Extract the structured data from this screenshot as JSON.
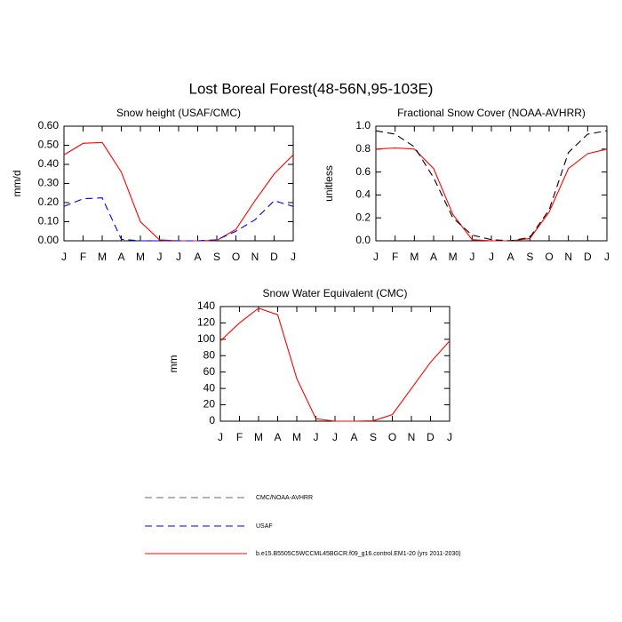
{
  "title": "Lost Boreal Forest(48-56N,95-103E)",
  "legend": {
    "entries": [
      {
        "label": "CMC/NOAA-AVHRR",
        "color": "#000000",
        "dash": "dashed"
      },
      {
        "label": "USAF",
        "color": "#0000ff",
        "dash": "dashed"
      },
      {
        "label": "b.e15.B5505C5WCCML45BGCR.f09_g16.control.EM1-20 (yrs 2011-2030)",
        "color": "#ff0000",
        "dash": "solid"
      }
    ]
  },
  "chart_data": [
    {
      "type": "line",
      "title": "Snow height (USAF/CMC)",
      "y_label": "mm/d",
      "categories": [
        "J",
        "F",
        "M",
        "A",
        "M",
        "J",
        "J",
        "A",
        "S",
        "O",
        "N",
        "D",
        "J"
      ],
      "ylim": [
        0,
        0.6
      ],
      "yticks": [
        {
          "value": 0,
          "label": "0.00"
        },
        {
          "value": 0.1,
          "label": "0.10"
        },
        {
          "value": 0.2,
          "label": "0.20"
        },
        {
          "value": 0.3,
          "label": "0.30"
        },
        {
          "value": 0.4,
          "label": "0.40"
        },
        {
          "value": 0.5,
          "label": "0.50"
        },
        {
          "value": 0.6,
          "label": "0.60"
        }
      ],
      "series": [
        {
          "name": "b.e15.B5505C5WCCML45BGCR.f09_g16.control.EM1-20 (yrs 2011-2030)",
          "color": "#ff0000",
          "dash": "solid",
          "values": [
            0.45,
            0.51,
            0.515,
            0.36,
            0.1,
            0.005,
            0,
            0,
            0.002,
            0.06,
            0.21,
            0.35,
            0.45
          ]
        },
        {
          "name": "USAF",
          "color": "#0000ff",
          "dash": "dashed",
          "values": [
            0.18,
            0.22,
            0.225,
            0.008,
            0,
            0,
            0,
            0,
            0.005,
            0.05,
            0.11,
            0.21,
            0.18
          ]
        }
      ]
    },
    {
      "type": "line",
      "title": "Fractional Snow Cover (NOAA-AVHRR)",
      "y_label": "unitless",
      "categories": [
        "J",
        "F",
        "M",
        "A",
        "M",
        "J",
        "J",
        "A",
        "S",
        "O",
        "N",
        "D",
        "J"
      ],
      "ylim": [
        0,
        1.0
      ],
      "yticks": [
        {
          "value": 0,
          "label": "0.0"
        },
        0.2,
        0.4,
        0.6,
        0.8,
        {
          "value": 1,
          "label": "1.0"
        }
      ],
      "series": [
        {
          "name": "b.e15.B5505C5WCCML45BGCR.f09_g16.control.EM1-20 (yrs 2011-2030)",
          "color": "#ff0000",
          "dash": "solid",
          "values": [
            0.8,
            0.81,
            0.8,
            0.63,
            0.23,
            0.01,
            0,
            0,
            0.02,
            0.25,
            0.63,
            0.76,
            0.8
          ]
        },
        {
          "name": "CMC/NOAA-AVHRR",
          "color": "#000000",
          "dash": "dashed",
          "values": [
            0.96,
            0.93,
            0.82,
            0.55,
            0.2,
            0.05,
            0.01,
            0,
            0.03,
            0.27,
            0.77,
            0.93,
            0.96
          ]
        }
      ]
    },
    {
      "type": "line",
      "title": "Snow Water Equivalent (CMC)",
      "y_label": "mm",
      "categories": [
        "J",
        "F",
        "M",
        "A",
        "M",
        "J",
        "J",
        "A",
        "S",
        "O",
        "N",
        "D",
        "J"
      ],
      "ylim": [
        0,
        140
      ],
      "yticks": [
        0,
        20,
        40,
        60,
        80,
        100,
        120,
        140
      ],
      "series": [
        {
          "name": "b.e15.B5505C5WCCML45BGCR.f09_g16.control.EM1-20 (yrs 2011-2030)",
          "color": "#ff0000",
          "dash": "solid",
          "values": [
            98,
            120,
            138,
            130,
            52,
            3,
            0,
            0,
            0.5,
            8,
            40,
            72,
            98
          ]
        }
      ]
    }
  ]
}
